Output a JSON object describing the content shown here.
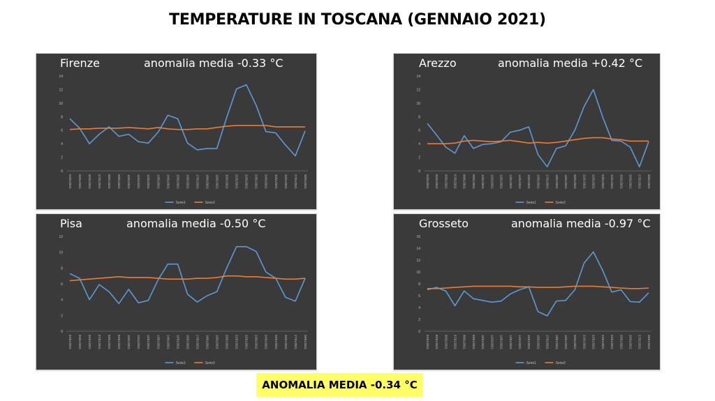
{
  "title": "TEMPERATURE IN TOSCANA (GENNAIO 2021)",
  "summary": "ANOMALIA MEDIA -0.34 °C",
  "colors": {
    "serie1": "#5b9bd5",
    "serie2": "#ed7d31",
    "panel_bg": "#3a3a3a",
    "highlight": "#ffff66"
  },
  "chart_data": [
    {
      "type": "line",
      "city": "Firenze",
      "anomaly": "anomalia media -0.33 °C",
      "ylim": [
        0,
        14
      ],
      "yticks": [
        "0",
        "2",
        "4",
        "6",
        "8",
        "10",
        "12",
        "14"
      ],
      "x": [
        "04/01/2021",
        "05/01/2021",
        "06/01/2021",
        "07/01/2021",
        "08/01/2021",
        "09/01/2021",
        "10/01/2021",
        "11/01/2021",
        "12/01/2021",
        "13/01/2021",
        "14/01/2021",
        "15/01/2021",
        "16/01/2021",
        "17/01/2021",
        "18/01/2021",
        "19/01/2021",
        "20/01/2021",
        "21/01/2021",
        "22/01/2021",
        "23/01/2021",
        "24/01/2021",
        "25/01/2021",
        "26/01/2021",
        "27/01/2021",
        "28/01/2021"
      ],
      "series": [
        {
          "name": "Serie1",
          "values": [
            7.7,
            6.3,
            4.0,
            5.4,
            6.5,
            5.1,
            5.4,
            4.3,
            4.1,
            5.7,
            8.2,
            7.7,
            4.1,
            3.1,
            3.3,
            3.3,
            7.9,
            12.1,
            12.7,
            9.7,
            5.8,
            5.6,
            3.8,
            2.2,
            5.9
          ]
        },
        {
          "name": "Serie2",
          "values": [
            6.1,
            6.2,
            6.2,
            6.3,
            6.3,
            6.3,
            6.4,
            6.3,
            6.2,
            6.4,
            6.2,
            6.1,
            6.1,
            6.2,
            6.2,
            6.4,
            6.6,
            6.7,
            6.7,
            6.7,
            6.7,
            6.5,
            6.5,
            6.5,
            6.5
          ]
        }
      ],
      "legend": "bottom"
    },
    {
      "type": "line",
      "city": "Arezzo",
      "anomaly": "anomalia media +0.42 °C",
      "ylim": [
        0,
        14
      ],
      "yticks": [
        "0",
        "2",
        "4",
        "6",
        "8",
        "10",
        "12",
        "14"
      ],
      "x": [
        "04/01/2021",
        "05/01/2021",
        "06/01/2021",
        "07/01/2021",
        "08/01/2021",
        "09/01/2021",
        "10/01/2021",
        "11/01/2021",
        "12/01/2021",
        "13/01/2021",
        "14/01/2021",
        "15/01/2021",
        "16/01/2021",
        "17/01/2021",
        "18/01/2021",
        "19/01/2021",
        "20/01/2021",
        "21/01/2021",
        "22/01/2021",
        "23/01/2021",
        "24/01/2021",
        "25/01/2021",
        "26/01/2021",
        "27/01/2021",
        "28/01/2021"
      ],
      "series": [
        {
          "name": "Serie1",
          "values": [
            7.0,
            5.3,
            3.5,
            2.6,
            5.2,
            3.3,
            3.9,
            4.0,
            4.3,
            5.7,
            6.0,
            6.5,
            2.4,
            0.6,
            3.3,
            3.7,
            6.0,
            9.5,
            12.0,
            8.0,
            4.5,
            4.4,
            3.5,
            0.6,
            4.3
          ]
        },
        {
          "name": "Serie2",
          "values": [
            4.0,
            4.0,
            4.0,
            4.1,
            4.4,
            4.5,
            4.4,
            4.3,
            4.4,
            4.5,
            4.3,
            4.1,
            4.2,
            4.1,
            4.2,
            4.4,
            4.6,
            4.8,
            4.9,
            4.9,
            4.7,
            4.6,
            4.4,
            4.4,
            4.4
          ]
        }
      ],
      "legend": "bottom"
    },
    {
      "type": "line",
      "city": "Pisa",
      "anomaly": "anomalia media -0.50 °C",
      "ylim": [
        0,
        12
      ],
      "yticks": [
        "0",
        "2",
        "4",
        "6",
        "8",
        "10",
        "12"
      ],
      "x": [
        "04/01/2021",
        "05/01/2021",
        "06/01/2021",
        "07/01/2021",
        "08/01/2021",
        "09/01/2021",
        "10/01/2021",
        "11/01/2021",
        "12/01/2021",
        "13/01/2021",
        "14/01/2021",
        "15/01/2021",
        "16/01/2021",
        "17/01/2021",
        "18/01/2021",
        "19/01/2021",
        "20/01/2021",
        "21/01/2021",
        "22/01/2021",
        "23/01/2021",
        "24/01/2021",
        "25/01/2021",
        "26/01/2021",
        "27/01/2021",
        "28/01/2021"
      ],
      "series": [
        {
          "name": "Serie1",
          "values": [
            7.3,
            6.7,
            4.0,
            5.9,
            5.0,
            3.5,
            5.3,
            3.6,
            3.9,
            6.5,
            8.5,
            8.5,
            4.7,
            3.7,
            4.5,
            5.0,
            8.0,
            10.7,
            10.7,
            10.1,
            7.5,
            6.7,
            4.3,
            3.8,
            6.7
          ]
        },
        {
          "name": "Serie2",
          "values": [
            6.4,
            6.5,
            6.6,
            6.7,
            6.8,
            6.9,
            6.8,
            6.8,
            6.8,
            6.7,
            6.6,
            6.6,
            6.6,
            6.7,
            6.7,
            6.8,
            7.0,
            7.0,
            6.9,
            6.9,
            6.8,
            6.7,
            6.6,
            6.6,
            6.7
          ]
        }
      ],
      "legend": "bottom"
    },
    {
      "type": "line",
      "city": "Grosseto",
      "anomaly": "anomalia media -0.97 °C",
      "ylim": [
        0,
        16
      ],
      "yticks": [
        "0",
        "2",
        "4",
        "6",
        "8",
        "10",
        "12",
        "14",
        "16"
      ],
      "x": [
        "04/01/2021",
        "05/01/2021",
        "06/01/2021",
        "07/01/2021",
        "08/01/2021",
        "09/01/2021",
        "10/01/2021",
        "11/01/2021",
        "12/01/2021",
        "13/01/2021",
        "14/01/2021",
        "15/01/2021",
        "16/01/2021",
        "17/01/2021",
        "18/01/2021",
        "19/01/2021",
        "20/01/2021",
        "21/01/2021",
        "22/01/2021",
        "23/01/2021",
        "24/01/2021",
        "25/01/2021",
        "26/01/2021",
        "27/01/2021",
        "28/01/2021"
      ],
      "series": [
        {
          "name": "Serie1",
          "values": [
            7.0,
            7.4,
            6.8,
            4.3,
            6.8,
            5.5,
            5.2,
            4.9,
            5.1,
            6.3,
            7.0,
            7.5,
            3.3,
            2.6,
            5.1,
            5.2,
            7.0,
            11.5,
            13.4,
            10.3,
            6.6,
            7.0,
            5.0,
            4.9,
            6.5
          ]
        },
        {
          "name": "Serie2",
          "values": [
            7.2,
            7.2,
            7.3,
            7.4,
            7.5,
            7.6,
            7.6,
            7.6,
            7.6,
            7.6,
            7.5,
            7.5,
            7.4,
            7.4,
            7.4,
            7.5,
            7.6,
            7.6,
            7.6,
            7.5,
            7.4,
            7.3,
            7.2,
            7.2,
            7.3
          ]
        }
      ],
      "legend": "bottom"
    }
  ]
}
